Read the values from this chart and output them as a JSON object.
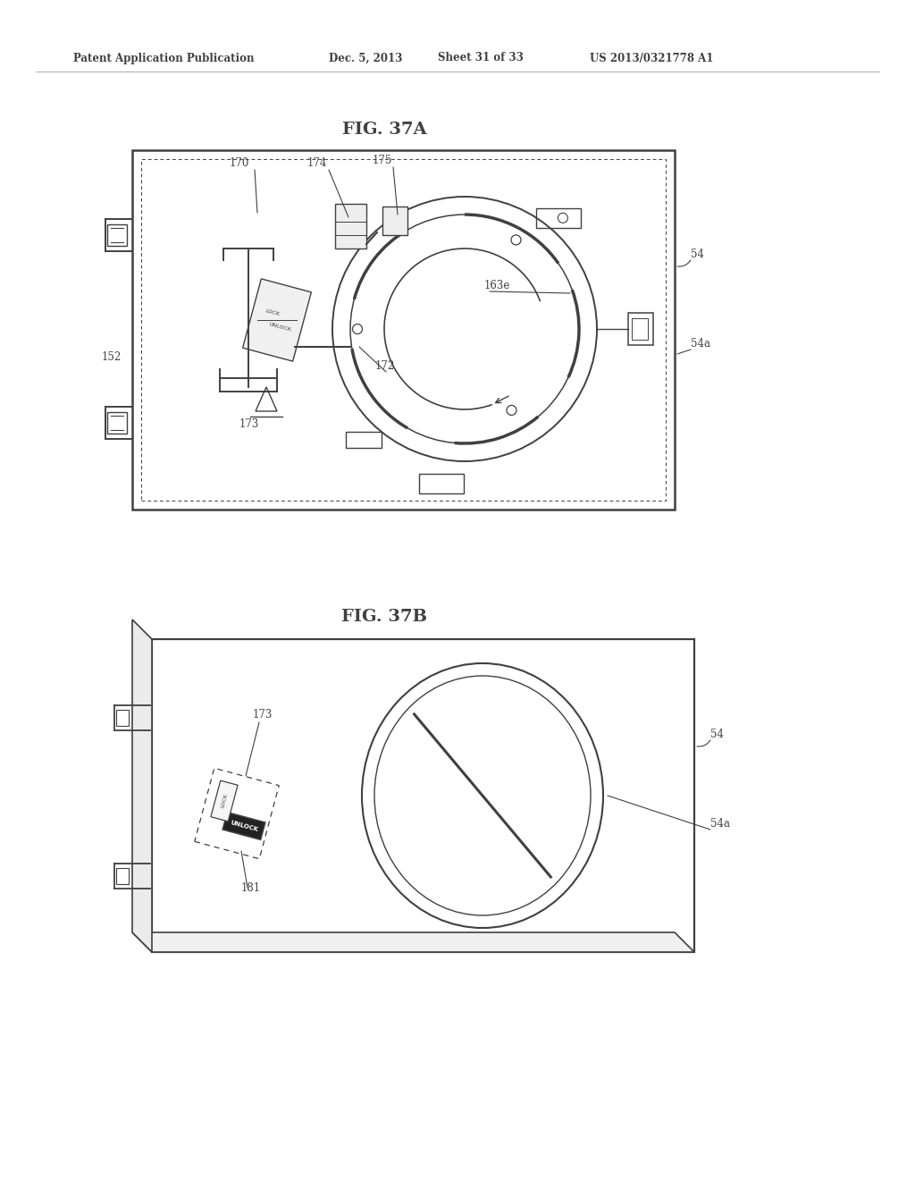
{
  "background_color": "#ffffff",
  "header_text": "Patent Application Publication",
  "header_date": "Dec. 5, 2013",
  "header_sheet": "Sheet 31 of 33",
  "header_patent": "US 2013/0321778 A1",
  "fig37a_title": "FIG. 37A",
  "fig37b_title": "FIG. 37B",
  "line_color": "#404040",
  "label_color": "#404040"
}
